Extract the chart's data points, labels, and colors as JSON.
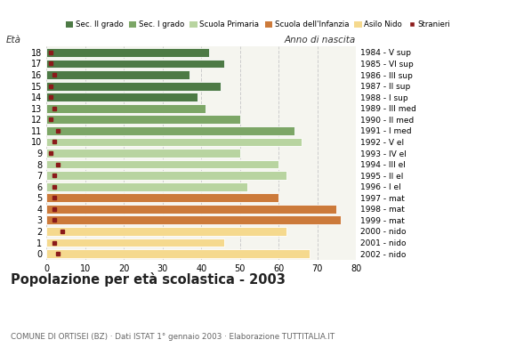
{
  "ages": [
    18,
    17,
    16,
    15,
    14,
    13,
    12,
    11,
    10,
    9,
    8,
    7,
    6,
    5,
    4,
    3,
    2,
    1,
    0
  ],
  "bar_values": [
    42,
    46,
    37,
    45,
    39,
    41,
    50,
    64,
    66,
    50,
    60,
    62,
    52,
    60,
    75,
    76,
    62,
    46,
    68
  ],
  "stranieri_values": [
    1,
    1,
    2,
    1,
    1,
    2,
    1,
    3,
    2,
    1,
    3,
    2,
    2,
    2,
    2,
    2,
    4,
    2,
    3
  ],
  "right_labels": [
    "1984 - V sup",
    "1985 - VI sup",
    "1986 - III sup",
    "1987 - II sup",
    "1988 - I sup",
    "1989 - III med",
    "1990 - II med",
    "1991 - I med",
    "1992 - V el",
    "1993 - IV el",
    "1994 - III el",
    "1995 - II el",
    "1996 - I el",
    "1997 - mat",
    "1998 - mat",
    "1999 - mat",
    "2000 - nido",
    "2001 - nido",
    "2002 - nido"
  ],
  "age_colors": {
    "18": "#4d7a45",
    "17": "#4d7a45",
    "16": "#4d7a45",
    "15": "#4d7a45",
    "14": "#4d7a45",
    "13": "#7ca666",
    "12": "#7ca666",
    "11": "#7ca666",
    "10": "#b8d4a0",
    "9": "#b8d4a0",
    "8": "#b8d4a0",
    "7": "#b8d4a0",
    "6": "#b8d4a0",
    "5": "#cc7a3a",
    "4": "#cc7a3a",
    "3": "#cc7a3a",
    "2": "#f5d98e",
    "1": "#f5d98e",
    "0": "#f5d98e"
  },
  "legend_labels": [
    "Sec. II grado",
    "Sec. I grado",
    "Scuola Primaria",
    "Scuola dell'Infanzia",
    "Asilo Nido",
    "Stranieri"
  ],
  "legend_colors": [
    "#4d7a45",
    "#7ca666",
    "#b8d4a0",
    "#cc7a3a",
    "#f5d98e",
    "#8b1a1a"
  ],
  "stranieri_color": "#8b1a1a",
  "title": "Popolazione per età scolastica - 2003",
  "subtitle": "COMUNE DI ORTISEI (BZ) · Dati ISTAT 1° gennaio 2003 · Elaborazione TUTTITALIA.IT",
  "ylabel_left": "Età",
  "ylabel_right": "Anno di nascita",
  "xlim": [
    0,
    80
  ],
  "xticks": [
    0,
    10,
    20,
    30,
    40,
    50,
    60,
    70,
    80
  ],
  "bar_height": 0.78,
  "bg_color": "#ffffff",
  "plot_bg_color": "#f5f5ef",
  "grid_color": "#cccccc"
}
